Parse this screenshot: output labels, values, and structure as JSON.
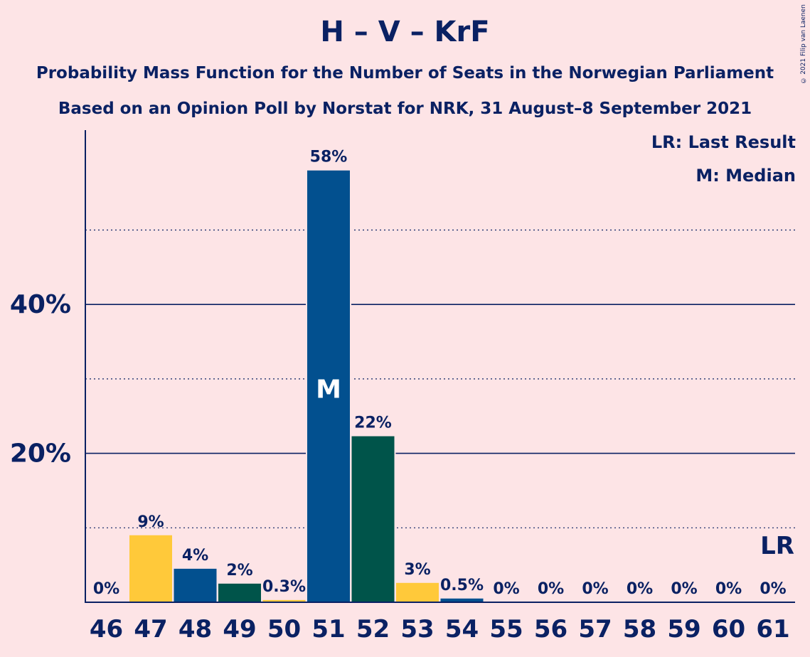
{
  "header": {
    "title": "H – V – KrF",
    "subtitle_line1": "Probability Mass Function for the Number of Seats in the Norwegian Parliament",
    "subtitle_line2": "Based on an Opinion Poll by Norstat for NRK, 31 August–8 September 2021",
    "copyright": "© 2021 Filip van Laenen"
  },
  "legend": {
    "last_result": "LR: Last Result",
    "median": "M: Median"
  },
  "colors": {
    "background": "#fde4e6",
    "text": "#0a2163",
    "blue": "#02508f",
    "yellow": "#ffc93a",
    "green": "#00544a"
  },
  "chart_data": {
    "type": "bar",
    "categories": [
      "46",
      "47",
      "48",
      "49",
      "50",
      "51",
      "52",
      "53",
      "54",
      "55",
      "56",
      "57",
      "58",
      "59",
      "60",
      "61"
    ],
    "values": [
      0,
      9,
      4.5,
      2.5,
      0.3,
      58,
      22.3,
      2.6,
      0.5,
      0,
      0,
      0,
      0,
      0,
      0,
      0
    ],
    "labels": [
      "0%",
      "9%",
      "4%",
      "2%",
      "0.3%",
      "58%",
      "22%",
      "3%",
      "0.5%",
      "0%",
      "0%",
      "0%",
      "0%",
      "0%",
      "0%",
      "0%"
    ],
    "bar_colors": [
      "blue",
      "yellow",
      "blue",
      "green",
      "yellow",
      "blue",
      "green",
      "yellow",
      "blue",
      "green",
      "yellow",
      "blue",
      "green",
      "yellow",
      "blue",
      "green"
    ],
    "ylim": [
      0,
      63
    ],
    "yticks_major": [
      {
        "value": 20,
        "label": "20%"
      },
      {
        "value": 40,
        "label": "40%"
      }
    ],
    "yticks_minor": [
      10,
      30,
      50
    ],
    "median_category": "51",
    "median_marker": "M",
    "last_result_category": "61",
    "last_result_marker": "LR"
  }
}
